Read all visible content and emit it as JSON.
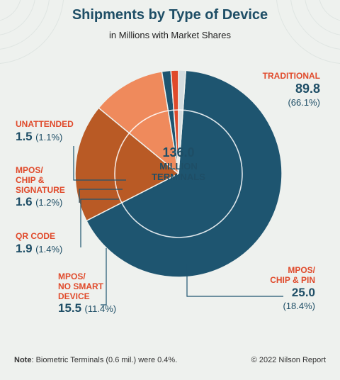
{
  "title": "Shipments by Type of Device",
  "subtitle": "in Millions with Market Shares",
  "center": {
    "value": "136.0",
    "line1": "MILLION",
    "line2": "TERMINALS"
  },
  "note_label": "Note",
  "note_text": ": Biometric Terminals (0.6 mil.) were 0.4%.",
  "copyright": "© 2022 Nilson Report",
  "labels": {
    "traditional": {
      "name": "TRADITIONAL",
      "value": "89.8",
      "pct": "(66.1%)"
    },
    "unattended": {
      "name": "UNATTENDED",
      "value": "1.5",
      "pct": "(1.1%)"
    },
    "mpos_sig_1": "MPOS/",
    "mpos_sig_2": "CHIP &",
    "mpos_sig_3": "SIGNATURE",
    "mpos_sig": {
      "value": "1.6",
      "pct": "(1.2%)"
    },
    "qr": {
      "name": "QR CODE",
      "value": "1.9",
      "pct": "(1.4%)"
    },
    "no_smart_1": "MPOS/",
    "no_smart_2": "NO SMART",
    "no_smart_3": "DEVICE",
    "no_smart": {
      "value": "15.5",
      "pct": "(11.4%)"
    },
    "chip_pin_1": "MPOS/",
    "chip_pin_2": "CHIP & PIN",
    "chip_pin": {
      "value": "25.0",
      "pct": "(18.4%)"
    }
  },
  "chart_data": {
    "type": "pie",
    "title": "Shipments by Type of Device",
    "subtitle": "in Millions with Market Shares",
    "total": 136.0,
    "slices": [
      {
        "name": "Traditional",
        "value": 89.8,
        "share": 66.1,
        "color": "#1e5570"
      },
      {
        "name": "MPOS/Chip & PIN",
        "value": 25.0,
        "share": 18.4,
        "color": "#b95a25"
      },
      {
        "name": "MPOS/No Smart Device",
        "value": 15.5,
        "share": 11.4,
        "color": "#ef8a5c"
      },
      {
        "name": "QR Code",
        "value": 1.9,
        "share": 1.4,
        "color": "#1e5570"
      },
      {
        "name": "MPOS/Chip & Signature",
        "value": 1.6,
        "share": 1.2,
        "color": "#e04a2b"
      },
      {
        "name": "Unattended",
        "value": 1.5,
        "share": 1.1,
        "color": "#d4dde0"
      }
    ],
    "colors": {
      "accent": "#e04a2b",
      "text": "#1e4e66",
      "leader": "#1e5570"
    }
  }
}
